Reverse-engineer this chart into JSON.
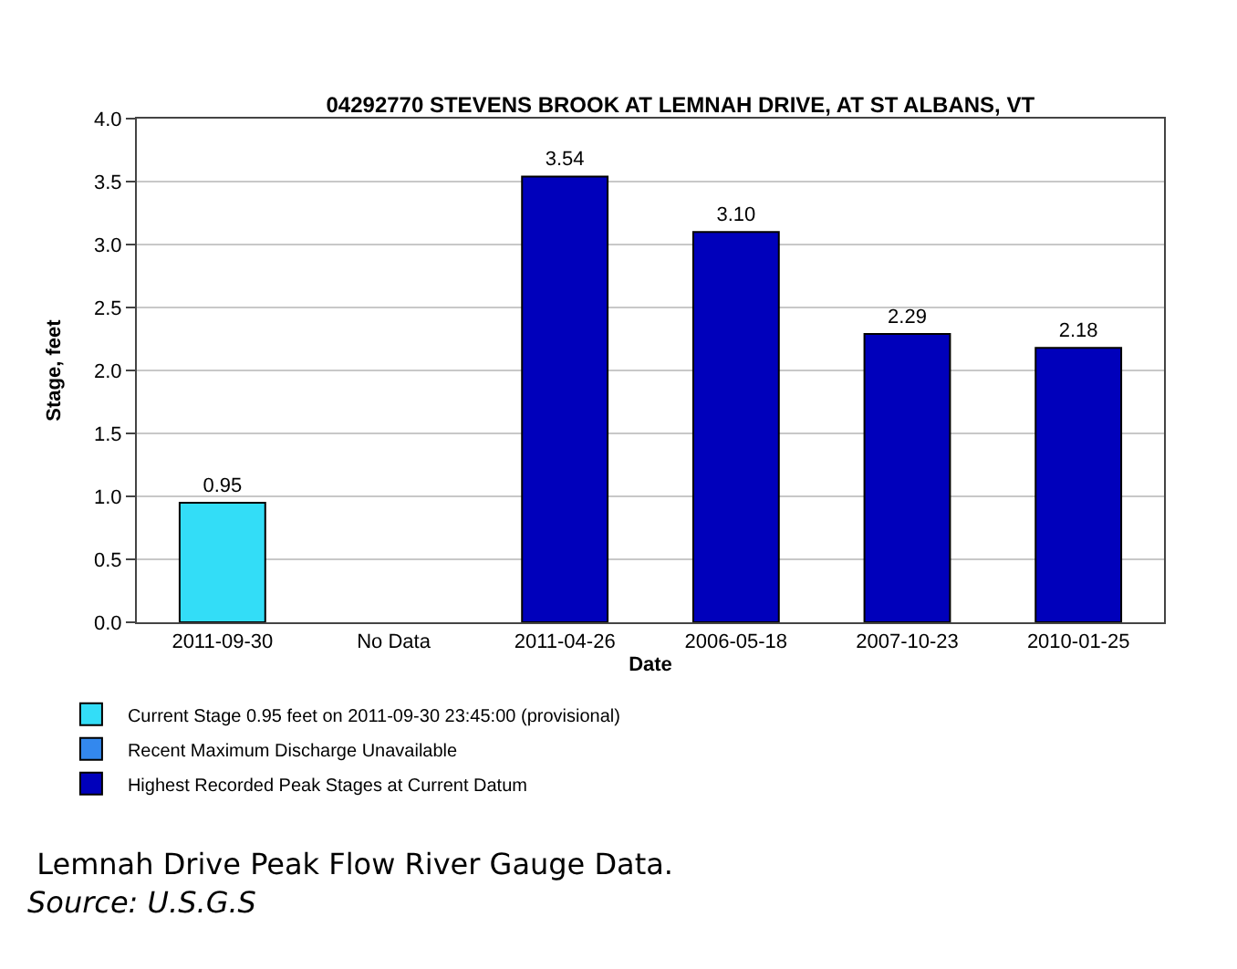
{
  "chart_data": {
    "type": "bar",
    "title": "04292770 STEVENS BROOK AT LEMNAH DRIVE, AT ST ALBANS, VT",
    "xlabel": "Date",
    "ylabel": "Stage, feet",
    "categories": [
      "2011-09-30",
      "No Data",
      "2011-04-26",
      "2006-05-18",
      "2007-10-23",
      "2010-01-25"
    ],
    "series": [
      {
        "name": "Current Stage 0.95 feet on 2011-09-30 23:45:00 (provisional)",
        "color": "#33ddf7",
        "values": [
          0.95,
          null,
          null,
          null,
          null,
          null
        ],
        "value_labels": [
          "0.95",
          null,
          null,
          null,
          null,
          null
        ]
      },
      {
        "name": "Recent Maximum Discharge Unavailable",
        "color": "#3388ee",
        "values": [
          null,
          null,
          null,
          null,
          null,
          null
        ]
      },
      {
        "name": "Highest Recorded Peak Stages at Current Datum",
        "color": "#0000bb",
        "values": [
          null,
          null,
          3.54,
          3.1,
          2.29,
          2.18
        ],
        "value_labels": [
          null,
          null,
          "3.54",
          "3.10",
          "2.29",
          "2.18"
        ]
      }
    ],
    "ylim": [
      0,
      4
    ],
    "yticks": [
      {
        "value": 0,
        "label": "0.0"
      },
      {
        "value": 0.5,
        "label": "0.5"
      },
      {
        "value": 1,
        "label": "1.0"
      },
      {
        "value": 1.5,
        "label": "1.5"
      },
      {
        "value": 2,
        "label": "2.0"
      },
      {
        "value": 2.5,
        "label": "2.5"
      },
      {
        "value": 3,
        "label": "3.0"
      },
      {
        "value": 3.5,
        "label": "3.5"
      },
      {
        "value": 4,
        "label": "4.0"
      }
    ],
    "grid": "y",
    "legend": "bottom left",
    "annotations": [
      " Lemnah Drive Peak Flow River Gauge Data.",
      "Source: U.S.G.S"
    ]
  }
}
